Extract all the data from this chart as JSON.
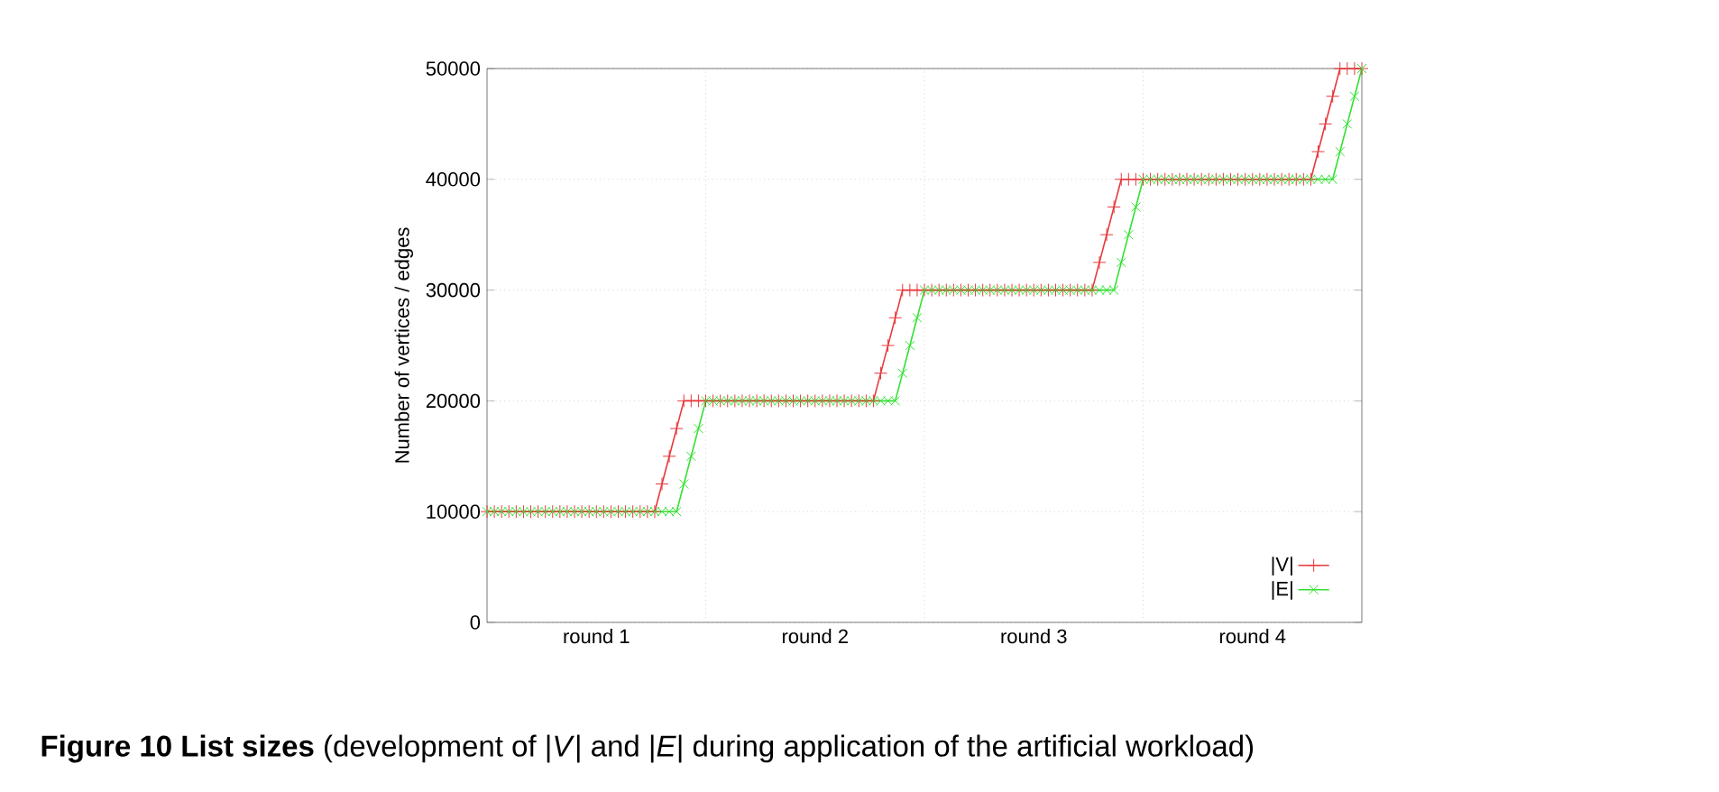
{
  "chart_data": {
    "type": "line",
    "title": "**Figure 10  List sizes** (development of |*V*| and |*E*| during application of the artificial workload)",
    "ylabel": "Number of vertices / edges",
    "categories": [
      null,
      null,
      null,
      null,
      null,
      null,
      null,
      null,
      null,
      null,
      null,
      null,
      null,
      null,
      null,
      "round 1",
      null,
      null,
      null,
      null,
      null,
      null,
      null,
      null,
      null,
      null,
      null,
      null,
      null,
      null,
      null,
      null,
      null,
      null,
      null,
      null,
      null,
      null,
      null,
      null,
      null,
      null,
      null,
      null,
      null,
      "round 2",
      null,
      null,
      null,
      null,
      null,
      null,
      null,
      null,
      null,
      null,
      null,
      null,
      null,
      null,
      null,
      null,
      null,
      null,
      null,
      null,
      null,
      null,
      null,
      null,
      null,
      null,
      null,
      null,
      null,
      "round 3",
      null,
      null,
      null,
      null,
      null,
      null,
      null,
      null,
      null,
      null,
      null,
      null,
      null,
      null,
      null,
      null,
      null,
      null,
      null,
      null,
      null,
      null,
      null,
      null,
      null,
      null,
      null,
      null,
      null,
      "round 4",
      null,
      null,
      null,
      null,
      null,
      null,
      null,
      null,
      null,
      null,
      null,
      null,
      null,
      null,
      null
    ],
    "ylim": [
      0,
      50000
    ],
    "yticks": [
      0,
      10000,
      20000,
      30000,
      40000,
      50000
    ],
    "grid": true,
    "legend": "bottom right",
    "line_style": "solid",
    "series": [
      {
        "name": "|V|",
        "color": "#e8383c",
        "marker": "plus",
        "values": [
          10000,
          10000,
          10000,
          10000,
          10000,
          10000,
          10000,
          10000,
          10000,
          10000,
          10000,
          10000,
          10000,
          10000,
          10000,
          10000,
          10000,
          10000,
          10000,
          10000,
          10000,
          10000,
          10000,
          10000,
          12500,
          15000,
          17500,
          20000,
          20000,
          20000,
          20000,
          20000,
          20000,
          20000,
          20000,
          20000,
          20000,
          20000,
          20000,
          20000,
          20000,
          20000,
          20000,
          20000,
          20000,
          20000,
          20000,
          20000,
          20000,
          20000,
          20000,
          20000,
          20000,
          20000,
          22500,
          25000,
          27500,
          30000,
          30000,
          30000,
          30000,
          30000,
          30000,
          30000,
          30000,
          30000,
          30000,
          30000,
          30000,
          30000,
          30000,
          30000,
          30000,
          30000,
          30000,
          30000,
          30000,
          30000,
          30000,
          30000,
          30000,
          30000,
          30000,
          30000,
          32500,
          35000,
          37500,
          40000,
          40000,
          40000,
          40000,
          40000,
          40000,
          40000,
          40000,
          40000,
          40000,
          40000,
          40000,
          40000,
          40000,
          40000,
          40000,
          40000,
          40000,
          40000,
          40000,
          40000,
          40000,
          40000,
          40000,
          40000,
          40000,
          40000,
          42500,
          45000,
          47500,
          50000,
          50000,
          50000,
          50000
        ]
      },
      {
        "name": "|E|",
        "color": "#33e033",
        "marker": "cross",
        "values": [
          10000,
          10000,
          10000,
          10000,
          10000,
          10000,
          10000,
          10000,
          10000,
          10000,
          10000,
          10000,
          10000,
          10000,
          10000,
          10000,
          10000,
          10000,
          10000,
          10000,
          10000,
          10000,
          10000,
          10000,
          10000,
          10000,
          10000,
          12500,
          15000,
          17500,
          20000,
          20000,
          20000,
          20000,
          20000,
          20000,
          20000,
          20000,
          20000,
          20000,
          20000,
          20000,
          20000,
          20000,
          20000,
          20000,
          20000,
          20000,
          20000,
          20000,
          20000,
          20000,
          20000,
          20000,
          20000,
          20000,
          20000,
          22500,
          25000,
          27500,
          30000,
          30000,
          30000,
          30000,
          30000,
          30000,
          30000,
          30000,
          30000,
          30000,
          30000,
          30000,
          30000,
          30000,
          30000,
          30000,
          30000,
          30000,
          30000,
          30000,
          30000,
          30000,
          30000,
          30000,
          30000,
          30000,
          30000,
          32500,
          35000,
          37500,
          40000,
          40000,
          40000,
          40000,
          40000,
          40000,
          40000,
          40000,
          40000,
          40000,
          40000,
          40000,
          40000,
          40000,
          40000,
          40000,
          40000,
          40000,
          40000,
          40000,
          40000,
          40000,
          40000,
          40000,
          40000,
          40000,
          40000,
          42500,
          45000,
          47500,
          50000
        ]
      }
    ]
  }
}
